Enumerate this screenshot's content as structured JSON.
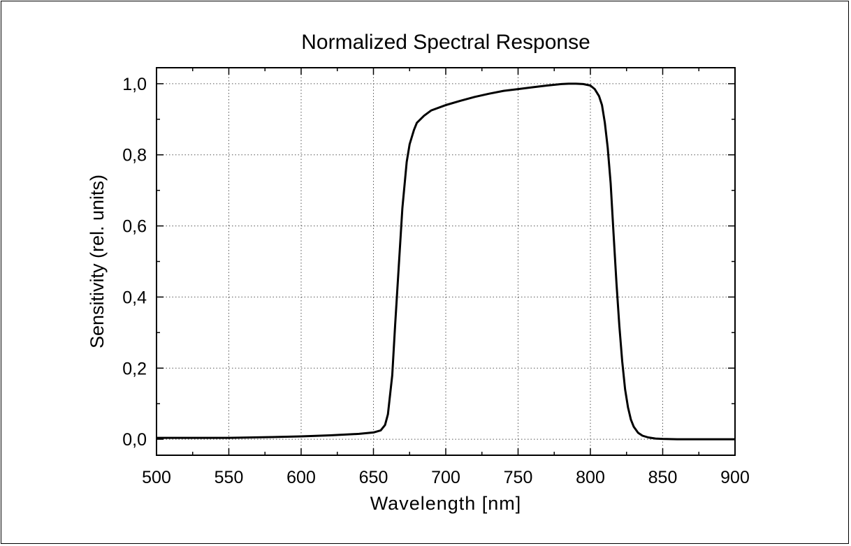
{
  "chart_data": {
    "type": "line",
    "title": "Normalized Spectral Response",
    "xlabel": "Wavelength [nm]",
    "ylabel": "Sensitivity (rel. units)",
    "xlim": [
      500,
      900
    ],
    "ylim": [
      -0.045,
      1.045
    ],
    "grid": true,
    "legend": "none",
    "line_color": "#000000",
    "x_ticks": [
      500,
      550,
      600,
      650,
      700,
      750,
      800,
      850,
      900
    ],
    "x_tick_labels": [
      "500",
      "550",
      "600",
      "650",
      "700",
      "750",
      "800",
      "850",
      "900"
    ],
    "y_ticks": [
      0.0,
      0.2,
      0.4,
      0.6,
      0.8,
      1.0
    ],
    "y_tick_labels": [
      "0,0",
      "0,2",
      "0,4",
      "0,6",
      "0,8",
      "1,0"
    ],
    "series": [
      {
        "x": [
          500,
          520,
          550,
          580,
          600,
          620,
          640,
          650,
          655,
          658,
          660,
          663,
          665,
          668,
          670,
          673,
          675,
          678,
          680,
          685,
          690,
          700,
          710,
          720,
          730,
          740,
          750,
          760,
          770,
          780,
          785,
          790,
          795,
          800,
          803,
          806,
          808,
          810,
          812,
          814,
          816,
          818,
          820,
          822,
          824,
          826,
          828,
          830,
          833,
          836,
          840,
          845,
          850,
          860,
          870,
          880,
          890,
          900
        ],
        "y": [
          0.004,
          0.004,
          0.004,
          0.006,
          0.008,
          0.011,
          0.015,
          0.019,
          0.025,
          0.04,
          0.07,
          0.18,
          0.32,
          0.52,
          0.65,
          0.78,
          0.83,
          0.87,
          0.89,
          0.91,
          0.925,
          0.94,
          0.952,
          0.963,
          0.972,
          0.98,
          0.985,
          0.99,
          0.995,
          0.999,
          1.0,
          1.0,
          0.999,
          0.995,
          0.985,
          0.965,
          0.94,
          0.89,
          0.82,
          0.72,
          0.58,
          0.44,
          0.32,
          0.22,
          0.14,
          0.09,
          0.055,
          0.035,
          0.018,
          0.01,
          0.005,
          0.002,
          0.001,
          0.0,
          0.0,
          0.0,
          0.0,
          0.0
        ]
      }
    ]
  }
}
